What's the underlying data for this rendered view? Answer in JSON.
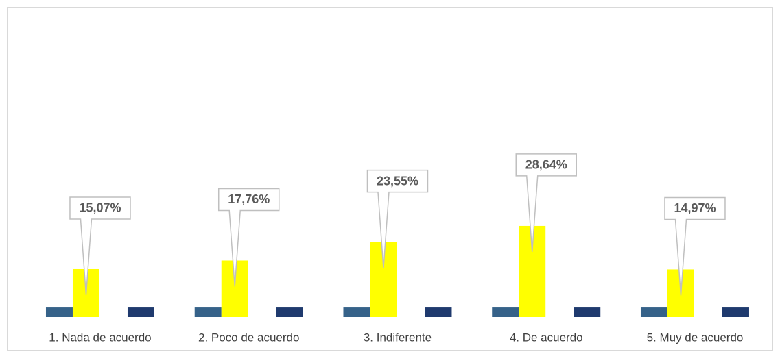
{
  "chart_data": {
    "type": "bar",
    "categories": [
      "1. Nada de acuerdo",
      "2. Poco de acuerdo",
      "3. Indiferente",
      "4. De acuerdo",
      "5. Muy de acuerdo"
    ],
    "series": [
      {
        "color": "#366289",
        "values": [
          3,
          3,
          3,
          3,
          3
        ]
      },
      {
        "color": "#ffff00",
        "values": [
          15.07,
          17.76,
          23.55,
          28.64,
          14.97
        ],
        "value_labels": [
          "15,07%",
          "17,76%",
          "23,55%",
          "28,64%",
          "14,97%"
        ]
      },
      {
        "color": "#1f3a6e",
        "values": [
          3,
          3,
          3,
          3,
          3
        ]
      }
    ],
    "ylim": [
      0,
      97.5
    ]
  }
}
